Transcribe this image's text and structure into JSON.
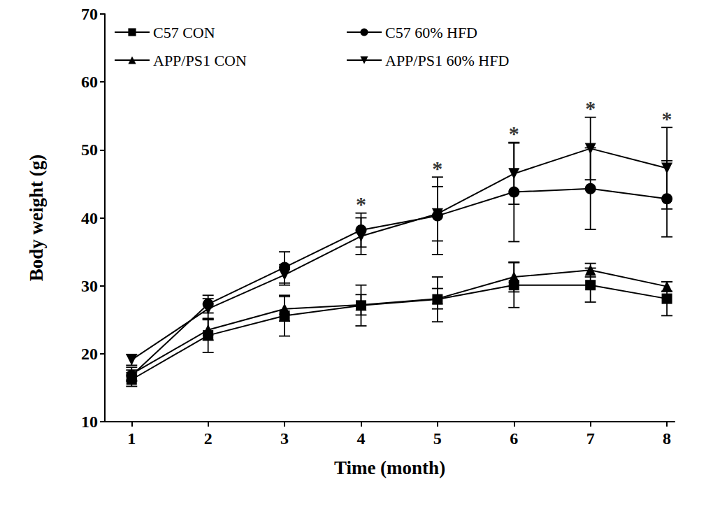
{
  "chart_data": {
    "type": "line",
    "x_label": "Time (month)",
    "y_label": "Body weight (g)",
    "x": [
      1,
      2,
      3,
      4,
      5,
      6,
      7,
      8
    ],
    "xlim": [
      0.65,
      8.1
    ],
    "xticks": [
      1,
      2,
      3,
      4,
      5,
      6,
      7,
      8
    ],
    "ylim": [
      10,
      70
    ],
    "yticks": [
      10,
      20,
      30,
      40,
      50,
      60,
      70
    ],
    "grid": false,
    "legend": "top",
    "series": [
      {
        "name": "C57 CON",
        "color": "#000000",
        "marker": "square",
        "line_style": "solid",
        "values": [
          16.2,
          22.7,
          25.6,
          27.1,
          28.0,
          30.1,
          30.1,
          28.1
        ],
        "errors": [
          1.0,
          2.5,
          3.0,
          3.0,
          3.3,
          3.3,
          2.5,
          2.5
        ]
      },
      {
        "name": "C57 60% HFD",
        "color": "#000000",
        "marker": "circle",
        "line_style": "solid",
        "values": [
          16.8,
          27.3,
          32.7,
          38.2,
          40.3,
          43.8,
          44.3,
          42.8
        ],
        "errors": [
          0.8,
          1.3,
          2.3,
          2.5,
          5.7,
          7.3,
          6.0,
          5.6
        ]
      },
      {
        "name": "APP/PS1 CON",
        "color": "#000000",
        "marker": "triangle",
        "line_style": "solid",
        "values": [
          17.0,
          23.5,
          26.6,
          27.2,
          28.1,
          31.3,
          32.3,
          29.9
        ],
        "errors": [
          1.0,
          1.5,
          1.8,
          1.5,
          1.5,
          2.2,
          1.0,
          0.7
        ]
      },
      {
        "name": "APP/PS1 60% HFD",
        "color": "#000000",
        "marker": "triangle_down",
        "line_style": "solid",
        "values": [
          19.1,
          26.6,
          31.6,
          37.3,
          40.6,
          46.5,
          50.2,
          47.3
        ],
        "errors": [
          0.8,
          1.5,
          1.5,
          2.7,
          4.0,
          4.5,
          4.6,
          6.0
        ]
      }
    ],
    "annotations": [
      {
        "x": 4,
        "text": "*"
      },
      {
        "x": 5,
        "text": "*"
      },
      {
        "x": 6,
        "text": "*"
      },
      {
        "x": 7,
        "text": "*"
      },
      {
        "x": 8,
        "text": "*"
      }
    ]
  }
}
